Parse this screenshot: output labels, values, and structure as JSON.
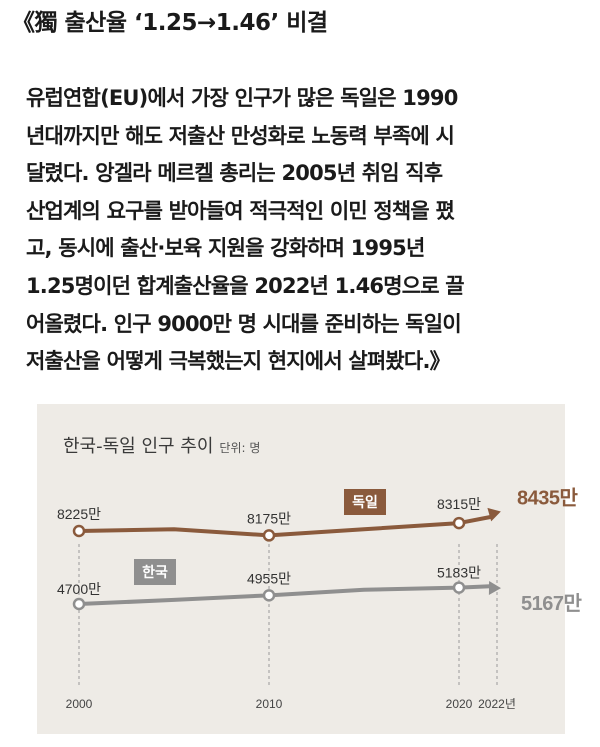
{
  "headline": "《獨 출산율 ‘1.25→1.46’ 비결",
  "body_lines": [
    "유럽연합(EU)에서 가장 인구가 많은 독일은 1990",
    "년대까지만 해도 저출산 만성화로 노동력 부족에 시",
    "달렸다. 앙겔라 메르켈 총리는 2005년 취임 직후",
    "산업계의 요구를 받아들여 적극적인 이민 정책을 폈",
    "고, 동시에 출산·보육 지원을 강화하며 1995년",
    "1.25명이던 합계출산율을 2022년 1.46명으로 끌",
    "어올렸다. 인구 9000만 명 시대를 준비하는 독일이",
    "저출산을 어떻게 극복했는지 현지에서 살펴봤다.》"
  ],
  "colors": {
    "germany": "#8a5a3c",
    "korea": "#8f8f8f",
    "chart_bg": "#eeebe6",
    "grid": "#9a9a9a"
  },
  "chart_data": {
    "type": "line",
    "title": "한국-독일 인구 추이",
    "unit": "단위: 명",
    "x_ticks": [
      "2000",
      "2010",
      "2020",
      "2022년"
    ],
    "series": [
      {
        "name": "독일",
        "color_key": "germany",
        "points": [
          {
            "x": 2000,
            "y": 82250000,
            "label": "8225만"
          },
          {
            "x": 2005,
            "y": 82450000,
            "label": ""
          },
          {
            "x": 2010,
            "y": 81750000,
            "label": "8175만"
          },
          {
            "x": 2015,
            "y": 82450000,
            "label": ""
          },
          {
            "x": 2020,
            "y": 83150000,
            "label": "8315만"
          },
          {
            "x": 2022,
            "y": 84350000,
            "label": "8435만"
          }
        ]
      },
      {
        "name": "한국",
        "color_key": "korea",
        "points": [
          {
            "x": 2000,
            "y": 47000000,
            "label": "4700만"
          },
          {
            "x": 2005,
            "y": 48200000,
            "label": ""
          },
          {
            "x": 2010,
            "y": 49550000,
            "label": "4955만"
          },
          {
            "x": 2015,
            "y": 51200000,
            "label": ""
          },
          {
            "x": 2020,
            "y": 51830000,
            "label": "5183만"
          },
          {
            "x": 2022,
            "y": 51670000,
            "label": "5167만"
          }
        ]
      }
    ]
  }
}
